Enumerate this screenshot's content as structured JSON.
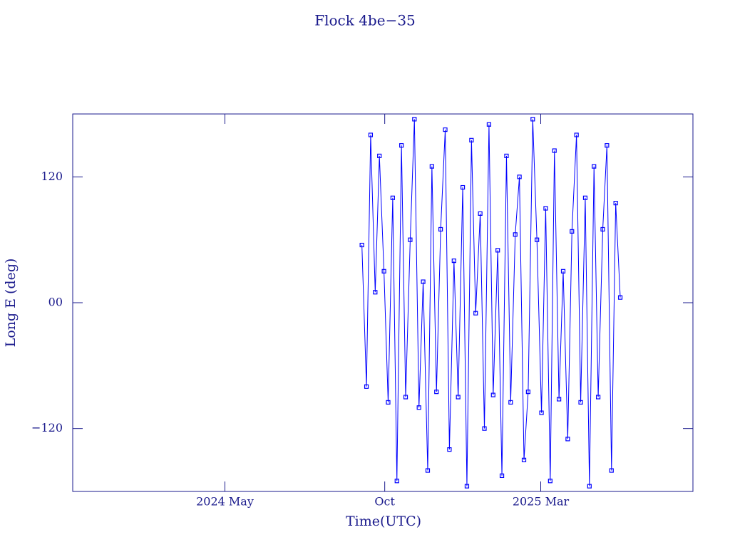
{
  "chart_data": {
    "type": "line",
    "title": "Flock 4be−35",
    "xlabel": "Time(UTC)",
    "ylabel": "Long E (deg)",
    "color": "#0000ff",
    "axis_color": "#1a1a8c",
    "x": [
      2024.69,
      2024.702,
      2024.713,
      2024.725,
      2024.736,
      2024.748,
      2024.759,
      2024.771,
      2024.782,
      2024.794,
      2024.805,
      2024.817,
      2024.828,
      2024.84,
      2024.851,
      2024.863,
      2024.874,
      2024.886,
      2024.897,
      2024.909,
      2024.92,
      2024.932,
      2024.943,
      2024.955,
      2024.966,
      2024.978,
      2024.989,
      2025.001,
      2025.012,
      2025.024,
      2025.035,
      2025.047,
      2025.058,
      2025.07,
      2025.081,
      2025.093,
      2025.104,
      2025.116,
      2025.127,
      2025.139,
      2025.15,
      2025.162,
      2025.173,
      2025.185,
      2025.196,
      2025.208,
      2025.219,
      2025.231,
      2025.242,
      2025.254,
      2025.265,
      2025.277,
      2025.288,
      2025.3,
      2025.311,
      2025.323,
      2025.334,
      2025.346,
      2025.357,
      2025.369
    ],
    "values": [
      55,
      -80,
      160,
      10,
      140,
      30,
      -95,
      100,
      -170,
      150,
      -90,
      60,
      175,
      -100,
      20,
      -160,
      130,
      -85,
      70,
      165,
      -140,
      40,
      -90,
      110,
      -175,
      155,
      -10,
      85,
      -120,
      170,
      -88,
      50,
      -165,
      140,
      -95,
      65,
      120,
      -150,
      -85,
      175,
      60,
      -105,
      90,
      -170,
      145,
      -92,
      30,
      -130,
      68,
      160,
      -95,
      100,
      -175,
      130,
      -90,
      70,
      150,
      -160,
      95,
      5
    ],
    "xlim": [
      2023.93,
      2025.56
    ],
    "xticks": [
      {
        "value": 2024.33,
        "label": "2024 May"
      },
      {
        "value": 2024.75,
        "label": "Oct"
      },
      {
        "value": 2025.16,
        "label": "2025 Mar"
      }
    ],
    "ylim": [
      -180,
      180
    ],
    "yticks": [
      {
        "value": -120,
        "label": "−120"
      },
      {
        "value": 0,
        "label": "00"
      },
      120
    ]
  }
}
